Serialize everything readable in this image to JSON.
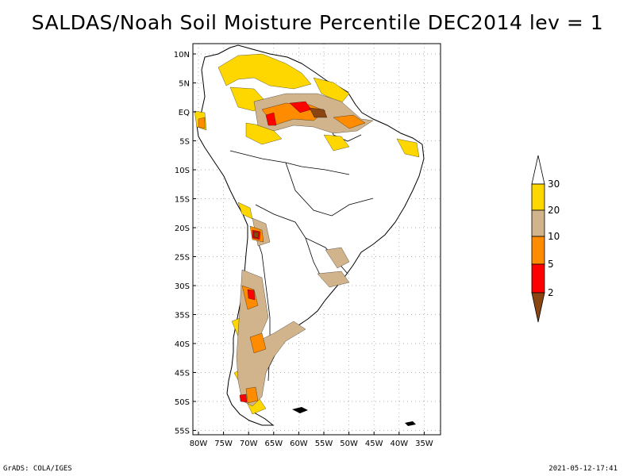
{
  "title": "SALDAS/Noah Soil Moisture Percentile DEC2014 lev = 1",
  "footer": {
    "left": "GrADS: COLA/IGES",
    "right": "2021-05-12-17:41"
  },
  "map": {
    "lat_ticks": [
      "10N",
      "5N",
      "EQ",
      "5S",
      "10S",
      "15S",
      "20S",
      "25S",
      "30S",
      "35S",
      "40S",
      "45S",
      "50S",
      "55S"
    ],
    "lon_ticks": [
      "80W",
      "75W",
      "70W",
      "65W",
      "60W",
      "55W",
      "50W",
      "45W",
      "40W",
      "35W"
    ],
    "lat_range": [
      -56,
      11
    ],
    "lon_range": [
      -81,
      -33
    ],
    "grid": "dotted"
  },
  "colorbar": {
    "labels": [
      "2",
      "5",
      "10",
      "20",
      "30"
    ],
    "colors": {
      "below_2": "#8B4513",
      "2_5": "#FF0000",
      "5_10": "#FF8C00",
      "10_20": "#D2B48C",
      "20_30": "#FFD700",
      "above_30": "#FFFFFF"
    }
  }
}
